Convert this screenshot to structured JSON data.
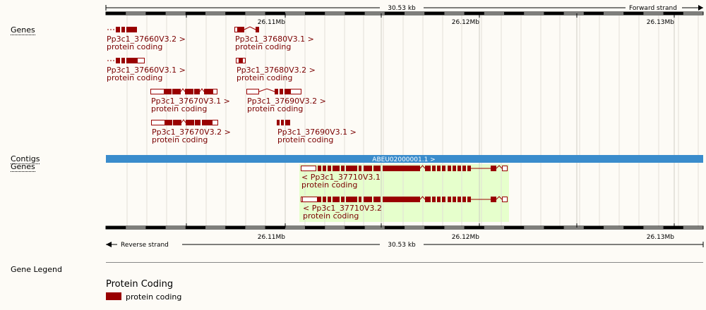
{
  "scale": {
    "span_label": "30.53 kb",
    "forward_strand": "Forward strand",
    "reverse_strand": "Reverse strand",
    "ticks": [
      "26.11Mb",
      "26.12Mb",
      "26.13Mb"
    ]
  },
  "tracks": {
    "genes_top": "Genes",
    "contigs": "Contigs",
    "genes_bottom": "Genes"
  },
  "contig": {
    "label": "ABEU02000001.1 >",
    "color": "#3a8ccc"
  },
  "forward_genes": [
    {
      "id": "Pp3c1_37660V3.2 >",
      "biotype": "protein coding"
    },
    {
      "id": "Pp3c1_37680V3.1 >",
      "biotype": "protein coding"
    },
    {
      "id": "Pp3c1_37660V3.1 >",
      "biotype": "protein coding"
    },
    {
      "id": "Pp3c1_37680V3.2 >",
      "biotype": "protein coding"
    },
    {
      "id": "Pp3c1_37670V3.1 >",
      "biotype": "protein coding"
    },
    {
      "id": "Pp3c1_37690V3.2 >",
      "biotype": "protein coding"
    },
    {
      "id": "Pp3c1_37670V3.2 >",
      "biotype": "protein coding"
    },
    {
      "id": "Pp3c1_37690V3.1 >",
      "biotype": "protein coding"
    }
  ],
  "reverse_genes": [
    {
      "id": "< Pp3c1_37710V3.1",
      "biotype": "protein coding"
    },
    {
      "id": "< Pp3c1_37710V3.2",
      "biotype": "protein coding"
    }
  ],
  "legend": {
    "section": "Gene Legend",
    "title": "Protein Coding",
    "item": "protein coding",
    "color": "#990000"
  },
  "colors": {
    "gene": "#990000",
    "highlight": "#e6ffcc",
    "contig": "#3a8ccc"
  }
}
